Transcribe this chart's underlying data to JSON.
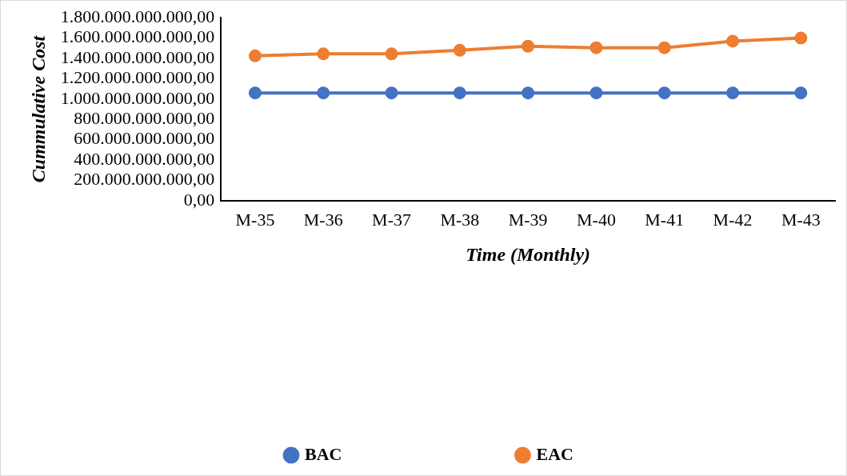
{
  "chart_data": {
    "type": "line",
    "xlabel": "Time (Monthly)",
    "ylabel": "Cummulative Cost",
    "categories": [
      "M-35",
      "M-36",
      "M-37",
      "M-38",
      "M-39",
      "M-40",
      "M-41",
      "M-42",
      "M-43"
    ],
    "series": [
      {
        "name": "BAC",
        "color": "#4472c4",
        "values": [
          1060000000000,
          1060000000000,
          1060000000000,
          1060000000000,
          1060000000000,
          1060000000000,
          1060000000000,
          1060000000000,
          1060000000000
        ]
      },
      {
        "name": "EAC",
        "color": "#ed7d31",
        "values": [
          1425000000000,
          1445000000000,
          1445000000000,
          1480000000000,
          1520000000000,
          1505000000000,
          1505000000000,
          1570000000000,
          1600000000000
        ]
      }
    ],
    "ylim": [
      0,
      1800000000000
    ],
    "yticks": [
      {
        "value": 0,
        "label": "0,00"
      },
      {
        "value": 200000000000,
        "label": "200.000.000.000,00"
      },
      {
        "value": 400000000000,
        "label": "400.000.000.000,00"
      },
      {
        "value": 600000000000,
        "label": "600.000.000.000,00"
      },
      {
        "value": 800000000000,
        "label": "800.000.000.000,00"
      },
      {
        "value": 1000000000000,
        "label": "1.000.000.000.000,00"
      },
      {
        "value": 1200000000000,
        "label": "1.200.000.000.000,00"
      },
      {
        "value": 1400000000000,
        "label": "1.400.000.000.000,00"
      },
      {
        "value": 1600000000000,
        "label": "1.600.000.000.000,00"
      },
      {
        "value": 1800000000000,
        "label": "1.800.000.000.000,00"
      }
    ],
    "grid": false,
    "legend": "bottom",
    "marker": "circle",
    "line_style": "solid"
  }
}
